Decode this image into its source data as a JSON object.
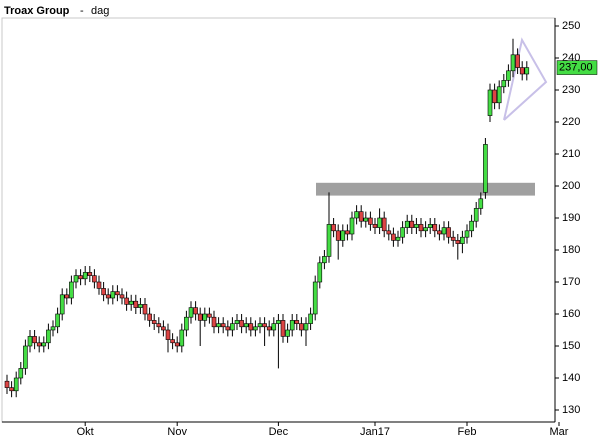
{
  "chart_data": {
    "type": "candlestick",
    "title": "Troax Group",
    "separator": "-",
    "subtitle": "dag",
    "categories": [
      null,
      null,
      null,
      null,
      null,
      null,
      null,
      null,
      null,
      null,
      null,
      null,
      null,
      null,
      null,
      null,
      null,
      "Okt",
      null,
      null,
      null,
      null,
      null,
      null,
      null,
      null,
      null,
      null,
      null,
      null,
      null,
      null,
      null,
      null,
      null,
      null,
      null,
      "Nov",
      null,
      null,
      null,
      null,
      null,
      null,
      null,
      null,
      null,
      null,
      null,
      null,
      null,
      null,
      null,
      null,
      null,
      null,
      null,
      null,
      null,
      "Dec",
      null,
      null,
      null,
      null,
      null,
      null,
      null,
      null,
      null,
      null,
      null,
      null,
      null,
      null,
      null,
      null,
      null,
      null,
      null,
      null,
      "Jan17",
      null,
      null,
      null,
      null,
      null,
      null,
      null,
      null,
      null,
      null,
      null,
      null,
      null,
      null,
      null,
      null,
      null,
      null,
      null,
      "Feb",
      null,
      null,
      null,
      null,
      null,
      null,
      null,
      null,
      null,
      null,
      null,
      null,
      null,
      null,
      null,
      null,
      null,
      null,
      null,
      "Mar"
    ],
    "open": [
      139,
      137,
      136,
      140,
      143,
      150,
      153,
      151,
      150,
      151,
      155,
      156,
      160,
      166,
      165,
      170,
      172,
      171,
      173,
      172,
      170,
      168,
      166,
      165,
      167,
      166,
      165,
      163,
      164,
      162,
      163,
      160,
      158,
      157,
      156,
      155,
      152,
      151,
      150,
      155,
      159,
      162,
      160,
      158,
      160,
      159,
      156,
      157,
      156,
      155,
      157,
      158,
      156,
      157,
      155,
      156,
      157,
      156,
      155,
      157,
      158,
      153,
      155,
      158,
      157,
      155,
      157,
      160,
      170,
      176,
      178,
      188,
      186,
      183,
      186,
      185,
      190,
      192,
      189,
      190,
      188,
      187,
      190,
      186,
      185,
      183,
      184,
      187,
      189,
      187,
      188,
      186,
      187,
      188,
      186,
      185,
      187,
      184,
      183,
      182,
      184,
      186,
      189,
      193,
      198,
      222,
      230,
      226,
      231,
      233,
      236,
      241,
      237,
      235,
      null,
      null,
      null,
      null,
      null,
      null,
      null
    ],
    "high": [
      141,
      139,
      142,
      145,
      152,
      155,
      155,
      153,
      153,
      157,
      158,
      162,
      168,
      168,
      172,
      174,
      174,
      175,
      175,
      174,
      172,
      170,
      168,
      169,
      169,
      168,
      167,
      166,
      166,
      165,
      165,
      162,
      160,
      159,
      158,
      157,
      154,
      153,
      157,
      161,
      164,
      164,
      162,
      162,
      162,
      161,
      159,
      159,
      158,
      159,
      160,
      160,
      159,
      159,
      158,
      159,
      159,
      158,
      159,
      160,
      160,
      157,
      160,
      160,
      159,
      159,
      162,
      172,
      178,
      180,
      198,
      190,
      188,
      188,
      188,
      192,
      194,
      194,
      192,
      192,
      190,
      193,
      192,
      188,
      187,
      186,
      189,
      191,
      191,
      190,
      190,
      189,
      190,
      190,
      188,
      189,
      189,
      186,
      185,
      186,
      188,
      191,
      195,
      198,
      215,
      232,
      232,
      233,
      235,
      238,
      246,
      243,
      239,
      239,
      null,
      null,
      null,
      null,
      null,
      null,
      null
    ],
    "low": [
      135,
      134,
      134,
      138,
      141,
      148,
      149,
      148,
      148,
      149,
      153,
      154,
      158,
      163,
      163,
      168,
      169,
      169,
      170,
      168,
      166,
      164,
      163,
      163,
      164,
      163,
      161,
      161,
      160,
      160,
      158,
      156,
      155,
      154,
      153,
      148,
      149,
      148,
      148,
      153,
      157,
      158,
      150,
      156,
      157,
      154,
      154,
      154,
      153,
      153,
      155,
      154,
      154,
      153,
      153,
      154,
      150,
      153,
      153,
      143,
      151,
      151,
      153,
      155,
      153,
      150,
      155,
      158,
      168,
      174,
      176,
      184,
      177,
      181,
      183,
      183,
      188,
      187,
      187,
      186,
      185,
      185,
      184,
      183,
      181,
      181,
      182,
      185,
      185,
      185,
      184,
      184,
      185,
      184,
      183,
      183,
      182,
      181,
      177,
      179,
      182,
      184,
      187,
      191,
      196,
      220,
      224,
      224,
      229,
      231,
      234,
      235,
      233,
      233,
      null,
      null,
      null,
      null,
      null,
      null,
      null
    ],
    "close": [
      137,
      136,
      140,
      143,
      150,
      153,
      151,
      150,
      151,
      155,
      156,
      160,
      166,
      165,
      170,
      172,
      171,
      173,
      172,
      170,
      168,
      166,
      165,
      167,
      166,
      165,
      163,
      164,
      162,
      163,
      160,
      158,
      157,
      156,
      155,
      152,
      151,
      150,
      155,
      159,
      162,
      160,
      158,
      160,
      159,
      156,
      157,
      156,
      155,
      157,
      158,
      156,
      157,
      155,
      156,
      157,
      156,
      155,
      157,
      158,
      153,
      155,
      158,
      157,
      155,
      157,
      160,
      170,
      176,
      178,
      188,
      186,
      183,
      186,
      185,
      190,
      192,
      189,
      190,
      188,
      187,
      190,
      186,
      185,
      183,
      184,
      187,
      189,
      187,
      188,
      186,
      187,
      188,
      186,
      185,
      187,
      184,
      183,
      182,
      184,
      186,
      189,
      193,
      196,
      213,
      230,
      226,
      231,
      233,
      236,
      241,
      237,
      235,
      237,
      null,
      null,
      null,
      null,
      null,
      null,
      null
    ],
    "up_color": "#44dd44",
    "down_color": "#dd4444",
    "ylim": [
      126.25,
      252.5
    ],
    "yticks": [
      130,
      140,
      150,
      160,
      170,
      180,
      190,
      200,
      210,
      220,
      230,
      240,
      250
    ],
    "zone": {
      "low": 197,
      "high": 201,
      "color": "#a0a0a0"
    },
    "price_marker": {
      "value": 237,
      "label": "237,00",
      "color": "#44dd44"
    }
  }
}
